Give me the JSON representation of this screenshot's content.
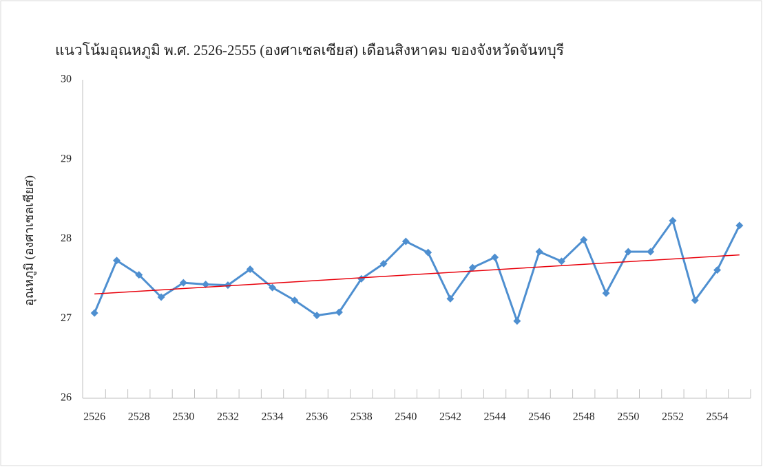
{
  "chart_data": {
    "type": "line",
    "title": "แนวโน้มอุณหภูมิ พ.ศ. 2526-2555 (องศาเซลเซียส) เดือนสิงหาคม ของจังหวัดจันทบุรี",
    "y_label": "อุณหภูมิ (องศาเซลเซียส)",
    "categories": [
      "2526",
      null,
      "2528",
      null,
      "2530",
      null,
      "2532",
      null,
      "2534",
      null,
      "2536",
      null,
      "2538",
      null,
      "2540",
      null,
      "2542",
      null,
      "2544",
      null,
      "2546",
      null,
      "2548",
      null,
      "2550",
      null,
      "2552",
      null,
      "2554",
      null
    ],
    "series": [
      {
        "color": "#4e8fd0",
        "values": [
          27.07,
          27.73,
          27.55,
          27.27,
          27.45,
          27.43,
          27.42,
          27.62,
          27.39,
          27.23,
          27.04,
          27.08,
          27.5,
          27.69,
          27.97,
          27.83,
          27.25,
          27.64,
          27.77,
          26.97,
          27.84,
          27.72,
          27.99,
          27.32,
          27.84,
          27.84,
          28.23,
          27.23,
          27.61,
          28.17
        ]
      }
    ],
    "trend": {
      "color": "#e8000b",
      "start": 27.31,
      "end": 27.8
    },
    "ylim": [
      26,
      30
    ],
    "yticks": [
      26,
      27,
      28,
      29,
      30
    ],
    "grid": false
  }
}
